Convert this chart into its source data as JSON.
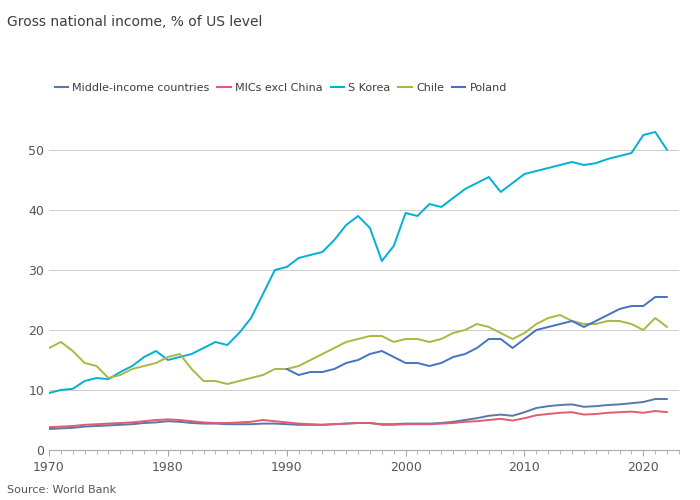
{
  "title": "Gross national income, % of US level",
  "source": "Source: World Bank",
  "xlim": [
    1970,
    2023
  ],
  "ylim": [
    0,
    55
  ],
  "yticks": [
    0,
    10,
    20,
    30,
    40,
    50
  ],
  "xticks": [
    1970,
    1980,
    1990,
    2000,
    2010,
    2020
  ],
  "series": {
    "Middle-income countries": {
      "color": "#5878a8",
      "data": {
        "1970": 3.5,
        "1971": 3.6,
        "1972": 3.7,
        "1973": 3.9,
        "1974": 4.0,
        "1975": 4.1,
        "1976": 4.2,
        "1977": 4.3,
        "1978": 4.5,
        "1979": 4.6,
        "1980": 4.8,
        "1981": 4.7,
        "1982": 4.5,
        "1983": 4.4,
        "1984": 4.4,
        "1985": 4.3,
        "1986": 4.3,
        "1987": 4.3,
        "1988": 4.4,
        "1989": 4.4,
        "1990": 4.3,
        "1991": 4.2,
        "1992": 4.2,
        "1993": 4.2,
        "1994": 4.3,
        "1995": 4.4,
        "1996": 4.5,
        "1997": 4.5,
        "1998": 4.3,
        "1999": 4.3,
        "2000": 4.4,
        "2001": 4.4,
        "2002": 4.4,
        "2003": 4.5,
        "2004": 4.7,
        "2005": 5.0,
        "2006": 5.3,
        "2007": 5.7,
        "2008": 5.9,
        "2009": 5.7,
        "2010": 6.3,
        "2011": 7.0,
        "2012": 7.3,
        "2013": 7.5,
        "2014": 7.6,
        "2015": 7.2,
        "2016": 7.3,
        "2017": 7.5,
        "2018": 7.6,
        "2019": 7.8,
        "2020": 8.0,
        "2021": 8.5,
        "2022": 8.5
      }
    },
    "MICs excl China": {
      "color": "#e05c6e",
      "data": {
        "1970": 3.8,
        "1971": 3.9,
        "1972": 4.0,
        "1973": 4.2,
        "1974": 4.3,
        "1975": 4.4,
        "1976": 4.5,
        "1977": 4.6,
        "1978": 4.8,
        "1979": 5.0,
        "1980": 5.1,
        "1981": 5.0,
        "1982": 4.8,
        "1983": 4.6,
        "1984": 4.5,
        "1985": 4.5,
        "1986": 4.6,
        "1987": 4.7,
        "1988": 5.0,
        "1989": 4.8,
        "1990": 4.6,
        "1991": 4.4,
        "1992": 4.3,
        "1993": 4.2,
        "1994": 4.3,
        "1995": 4.4,
        "1996": 4.5,
        "1997": 4.5,
        "1998": 4.2,
        "1999": 4.2,
        "2000": 4.3,
        "2001": 4.3,
        "2002": 4.3,
        "2003": 4.4,
        "2004": 4.5,
        "2005": 4.7,
        "2006": 4.8,
        "2007": 5.0,
        "2008": 5.2,
        "2009": 4.9,
        "2010": 5.3,
        "2011": 5.8,
        "2012": 6.0,
        "2013": 6.2,
        "2014": 6.3,
        "2015": 5.9,
        "2016": 6.0,
        "2017": 6.2,
        "2018": 6.3,
        "2019": 6.4,
        "2020": 6.2,
        "2021": 6.5,
        "2022": 6.3
      }
    },
    "S Korea": {
      "color": "#00b0d6",
      "data": {
        "1970": 9.5,
        "1971": 10.0,
        "1972": 10.2,
        "1973": 11.5,
        "1974": 12.0,
        "1975": 11.8,
        "1976": 13.0,
        "1977": 14.0,
        "1978": 15.5,
        "1979": 16.5,
        "1980": 15.0,
        "1981": 15.5,
        "1982": 16.0,
        "1983": 17.0,
        "1984": 18.0,
        "1985": 17.5,
        "1986": 19.5,
        "1987": 22.0,
        "1988": 26.0,
        "1989": 30.0,
        "1990": 30.5,
        "1991": 32.0,
        "1992": 32.5,
        "1993": 33.0,
        "1994": 35.0,
        "1995": 37.5,
        "1996": 39.0,
        "1997": 37.0,
        "1998": 31.5,
        "1999": 34.0,
        "2000": 39.5,
        "2001": 39.0,
        "2002": 41.0,
        "2003": 40.5,
        "2004": 42.0,
        "2005": 43.5,
        "2006": 44.5,
        "2007": 45.5,
        "2008": 43.0,
        "2009": 44.5,
        "2010": 46.0,
        "2011": 46.5,
        "2012": 47.0,
        "2013": 47.5,
        "2014": 48.0,
        "2015": 47.5,
        "2016": 47.8,
        "2017": 48.5,
        "2018": 49.0,
        "2019": 49.5,
        "2020": 52.5,
        "2021": 53.0,
        "2022": 50.0
      }
    },
    "Chile": {
      "color": "#a8b840",
      "data": {
        "1970": 17.0,
        "1971": 18.0,
        "1972": 16.5,
        "1973": 14.5,
        "1974": 14.0,
        "1975": 12.0,
        "1976": 12.5,
        "1977": 13.5,
        "1978": 14.0,
        "1979": 14.5,
        "1980": 15.5,
        "1981": 16.0,
        "1982": 13.5,
        "1983": 11.5,
        "1984": 11.5,
        "1985": 11.0,
        "1986": 11.5,
        "1987": 12.0,
        "1988": 12.5,
        "1989": 13.5,
        "1990": 13.5,
        "1991": 14.0,
        "1992": 15.0,
        "1993": 16.0,
        "1994": 17.0,
        "1995": 18.0,
        "1996": 18.5,
        "1997": 19.0,
        "1998": 19.0,
        "1999": 18.0,
        "2000": 18.5,
        "2001": 18.5,
        "2002": 18.0,
        "2003": 18.5,
        "2004": 19.5,
        "2005": 20.0,
        "2006": 21.0,
        "2007": 20.5,
        "2008": 19.5,
        "2009": 18.5,
        "2010": 19.5,
        "2011": 21.0,
        "2012": 22.0,
        "2013": 22.5,
        "2014": 21.5,
        "2015": 21.0,
        "2016": 21.0,
        "2017": 21.5,
        "2018": 21.5,
        "2019": 21.0,
        "2020": 20.0,
        "2021": 22.0,
        "2022": 20.5
      }
    },
    "Poland": {
      "color": "#4472c4",
      "data": {
        "1990": 13.5,
        "1991": 12.5,
        "1992": 13.0,
        "1993": 13.0,
        "1994": 13.5,
        "1995": 14.5,
        "1996": 15.0,
        "1997": 16.0,
        "1998": 16.5,
        "1999": 15.5,
        "2000": 14.5,
        "2001": 14.5,
        "2002": 14.0,
        "2003": 14.5,
        "2004": 15.5,
        "2005": 16.0,
        "2006": 17.0,
        "2007": 18.5,
        "2008": 18.5,
        "2009": 17.0,
        "2010": 18.5,
        "2011": 20.0,
        "2012": 20.5,
        "2013": 21.0,
        "2014": 21.5,
        "2015": 20.5,
        "2016": 21.5,
        "2017": 22.5,
        "2018": 23.5,
        "2019": 24.0,
        "2020": 24.0,
        "2021": 25.5,
        "2022": 25.5
      }
    }
  },
  "background_color": "#ffffff",
  "grid_color": "#cccccc",
  "title_color": "#3d3d3d",
  "legend_colors": {
    "Middle-income countries": "#5878a8",
    "MICs excl China": "#e05c6e",
    "S Korea": "#00b0d6",
    "Chile": "#a8b840",
    "Poland": "#4472c4"
  }
}
